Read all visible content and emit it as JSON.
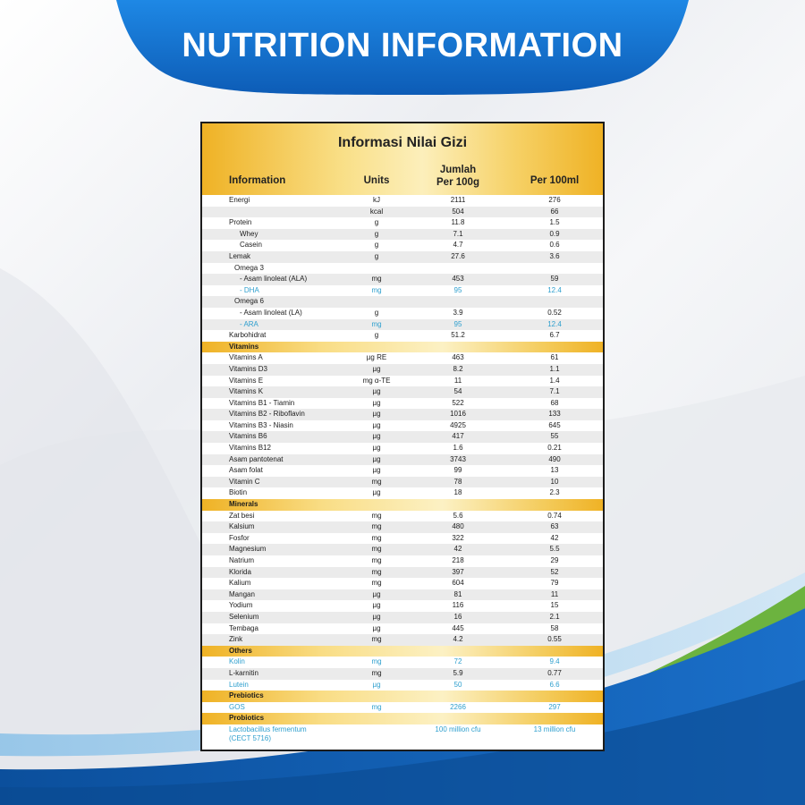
{
  "banner_title": "NUTRITION INFORMATION",
  "table": {
    "title": "Informasi Nilai Gizi",
    "headers": {
      "information": "Information",
      "units": "Units",
      "per100g_line1": "Jumlah",
      "per100g_line2": "Per 100g",
      "per100ml": "Per 100ml"
    },
    "rows": [
      {
        "name": "Energi",
        "unit": "kJ",
        "g": "2111",
        "ml": "276",
        "indent": 0
      },
      {
        "name": "",
        "unit": "kcal",
        "g": "504",
        "ml": "66",
        "indent": 0
      },
      {
        "name": "Protein",
        "unit": "g",
        "g": "11.8",
        "ml": "1.5",
        "indent": 0
      },
      {
        "name": "Whey",
        "unit": "g",
        "g": "7.1",
        "ml": "0.9",
        "indent": 2
      },
      {
        "name": "Casein",
        "unit": "g",
        "g": "4.7",
        "ml": "0.6",
        "indent": 2
      },
      {
        "name": "Lemak",
        "unit": "g",
        "g": "27.6",
        "ml": "3.6",
        "indent": 0
      },
      {
        "name": "Omega 3",
        "unit": "",
        "g": "",
        "ml": "",
        "indent": 1
      },
      {
        "name": "- Asam linoleat (ALA)",
        "unit": "mg",
        "g": "453",
        "ml": "59",
        "indent": 2
      },
      {
        "name": "- DHA",
        "unit": "mg",
        "g": "95",
        "ml": "12.4",
        "indent": 2,
        "blue": true
      },
      {
        "name": "Omega 6",
        "unit": "",
        "g": "",
        "ml": "",
        "indent": 1
      },
      {
        "name": "- Asam linoleat (LA)",
        "unit": "g",
        "g": "3.9",
        "ml": "0.52",
        "indent": 2
      },
      {
        "name": "- ARA",
        "unit": "mg",
        "g": "95",
        "ml": "12.4",
        "indent": 2,
        "blue": true
      },
      {
        "name": "Karbohidrat",
        "unit": "g",
        "g": "51.2",
        "ml": "6.7",
        "indent": 0
      },
      {
        "name": "Vitamins",
        "section": true
      },
      {
        "name": "Vitamins A",
        "unit": "µg RE",
        "g": "463",
        "ml": "61",
        "indent": 0
      },
      {
        "name": "Vitamins D3",
        "unit": "µg",
        "g": "8.2",
        "ml": "1.1",
        "indent": 0
      },
      {
        "name": "Vitamins E",
        "unit": "mg α-TE",
        "g": "11",
        "ml": "1.4",
        "indent": 0
      },
      {
        "name": "Vitamins K",
        "unit": "µg",
        "g": "54",
        "ml": "7.1",
        "indent": 0
      },
      {
        "name": "Vitamins B1 - Tiamin",
        "unit": "µg",
        "g": "522",
        "ml": "68",
        "indent": 0
      },
      {
        "name": "Vitamins B2 - Riboflavin",
        "unit": "µg",
        "g": "1016",
        "ml": "133",
        "indent": 0
      },
      {
        "name": "Vitamins B3 - Niasin",
        "unit": "µg",
        "g": "4925",
        "ml": "645",
        "indent": 0
      },
      {
        "name": "Vitamins B6",
        "unit": "µg",
        "g": "417",
        "ml": "55",
        "indent": 0
      },
      {
        "name": "Vitamins B12",
        "unit": "µg",
        "g": "1.6",
        "ml": "0.21",
        "indent": 0
      },
      {
        "name": "Asam pantotenat",
        "unit": "µg",
        "g": "3743",
        "ml": "490",
        "indent": 0
      },
      {
        "name": "Asam folat",
        "unit": "µg",
        "g": "99",
        "ml": "13",
        "indent": 0
      },
      {
        "name": "Vitamin C",
        "unit": "mg",
        "g": "78",
        "ml": "10",
        "indent": 0
      },
      {
        "name": "Biotin",
        "unit": "µg",
        "g": "18",
        "ml": "2.3",
        "indent": 0
      },
      {
        "name": "Minerals",
        "section": true
      },
      {
        "name": "Zat besi",
        "unit": "mg",
        "g": "5.6",
        "ml": "0.74",
        "indent": 0
      },
      {
        "name": "Kalsium",
        "unit": "mg",
        "g": "480",
        "ml": "63",
        "indent": 0
      },
      {
        "name": "Fosfor",
        "unit": "mg",
        "g": "322",
        "ml": "42",
        "indent": 0
      },
      {
        "name": "Magnesium",
        "unit": "mg",
        "g": "42",
        "ml": "5.5",
        "indent": 0
      },
      {
        "name": "Natrium",
        "unit": "mg",
        "g": "218",
        "ml": "29",
        "indent": 0
      },
      {
        "name": "Klorida",
        "unit": "mg",
        "g": "397",
        "ml": "52",
        "indent": 0
      },
      {
        "name": "Kalium",
        "unit": "mg",
        "g": "604",
        "ml": "79",
        "indent": 0
      },
      {
        "name": "Mangan",
        "unit": "µg",
        "g": "81",
        "ml": "11",
        "indent": 0
      },
      {
        "name": "Yodium",
        "unit": "µg",
        "g": "116",
        "ml": "15",
        "indent": 0
      },
      {
        "name": "Selenium",
        "unit": "µg",
        "g": "16",
        "ml": "2.1",
        "indent": 0
      },
      {
        "name": "Tembaga",
        "unit": "µg",
        "g": "445",
        "ml": "58",
        "indent": 0
      },
      {
        "name": "Zink",
        "unit": "mg",
        "g": "4.2",
        "ml": "0.55",
        "indent": 0
      },
      {
        "name": "Others",
        "section": true
      },
      {
        "name": "Kolin",
        "unit": "mg",
        "g": "72",
        "ml": "9.4",
        "indent": 0,
        "blue": true
      },
      {
        "name": "L-karnitin",
        "unit": "mg",
        "g": "5.9",
        "ml": "0.77",
        "indent": 0
      },
      {
        "name": "Lutein",
        "unit": "µg",
        "g": "50",
        "ml": "6.6",
        "indent": 0,
        "blue": true
      },
      {
        "name": "Prebiotics",
        "section": true
      },
      {
        "name": "GOS",
        "unit": "mg",
        "g": "2266",
        "ml": "297",
        "indent": 0,
        "blue": true
      },
      {
        "name": "Probiotics",
        "section": true
      },
      {
        "name": "Lactobacillus fermentum",
        "name2": "(CECT 5716)",
        "unit": "",
        "g": "100 million cfu",
        "ml": "13 million cfu",
        "indent": 0,
        "blue": true,
        "tall": true
      }
    ]
  },
  "colors": {
    "banner_blue": "#1565c0",
    "gold": "#efb225",
    "accent_blue_text": "#2e9fce",
    "green_swoosh": "#6cb33f"
  }
}
